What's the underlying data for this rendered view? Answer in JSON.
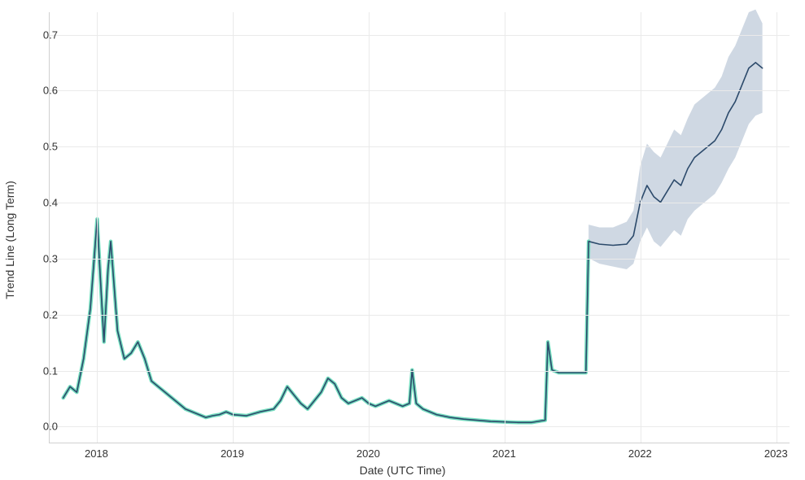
{
  "chart": {
    "type": "line",
    "xlabel": "Date (UTC Time)",
    "ylabel": "Trend Line (Long Term)",
    "background_color": "#ffffff",
    "grid_color": "#eaeaea",
    "axis_color": "#d0d0d0",
    "text_color": "#333333",
    "label_fontsize": 14,
    "tick_fontsize": 13,
    "ylim": [
      -0.03,
      0.74
    ],
    "xlim": [
      2017.65,
      2023.1
    ],
    "yticks": [
      0.0,
      0.1,
      0.2,
      0.3,
      0.4,
      0.5,
      0.6,
      0.7
    ],
    "xticks": [
      2018,
      2019,
      2020,
      2021,
      2022,
      2023
    ],
    "xtick_labels": [
      "2018",
      "2019",
      "2020",
      "2021",
      "2022",
      "2023"
    ],
    "ytick_labels": [
      "0.0",
      "0.1",
      "0.2",
      "0.3",
      "0.4",
      "0.5",
      "0.6",
      "0.7"
    ],
    "series": {
      "historical_band": {
        "color": "#66d9b8",
        "opacity": 0.9,
        "width": 4.5
      },
      "forecast_band": {
        "color": "#a7b8cc",
        "opacity": 0.55
      },
      "line": {
        "color": "#2c4a6b",
        "width": 1.6
      }
    },
    "data": {
      "x": [
        2017.75,
        2017.8,
        2017.85,
        2017.9,
        2017.95,
        2018.0,
        2018.02,
        2018.05,
        2018.08,
        2018.1,
        2018.15,
        2018.2,
        2018.25,
        2018.3,
        2018.35,
        2018.4,
        2018.45,
        2018.5,
        2018.55,
        2018.6,
        2018.65,
        2018.7,
        2018.75,
        2018.8,
        2018.85,
        2018.9,
        2018.95,
        2019.0,
        2019.1,
        2019.2,
        2019.3,
        2019.35,
        2019.4,
        2019.45,
        2019.5,
        2019.55,
        2019.6,
        2019.65,
        2019.7,
        2019.75,
        2019.8,
        2019.85,
        2019.9,
        2019.95,
        2020.0,
        2020.05,
        2020.1,
        2020.15,
        2020.2,
        2020.25,
        2020.3,
        2020.32,
        2020.35,
        2020.4,
        2020.5,
        2020.6,
        2020.7,
        2020.8,
        2020.9,
        2021.0,
        2021.1,
        2021.2,
        2021.3,
        2021.32,
        2021.35,
        2021.4,
        2021.5,
        2021.6,
        2021.62,
        2021.7,
        2021.8,
        2021.9,
        2021.95,
        2022.0,
        2022.05,
        2022.1,
        2022.15,
        2022.2,
        2022.25,
        2022.3,
        2022.35,
        2022.4,
        2022.45,
        2022.5,
        2022.55,
        2022.6,
        2022.65,
        2022.7,
        2022.75,
        2022.8,
        2022.85,
        2022.9
      ],
      "y": [
        0.05,
        0.07,
        0.06,
        0.12,
        0.21,
        0.37,
        0.28,
        0.15,
        0.28,
        0.33,
        0.17,
        0.12,
        0.13,
        0.15,
        0.12,
        0.08,
        0.07,
        0.06,
        0.05,
        0.04,
        0.03,
        0.025,
        0.02,
        0.015,
        0.018,
        0.02,
        0.025,
        0.02,
        0.018,
        0.025,
        0.03,
        0.045,
        0.07,
        0.055,
        0.04,
        0.03,
        0.045,
        0.06,
        0.085,
        0.075,
        0.05,
        0.04,
        0.045,
        0.05,
        0.04,
        0.035,
        0.04,
        0.045,
        0.04,
        0.035,
        0.04,
        0.1,
        0.04,
        0.03,
        0.02,
        0.015,
        0.012,
        0.01,
        0.008,
        0.007,
        0.006,
        0.006,
        0.01,
        0.15,
        0.1,
        0.095,
        0.095,
        0.095,
        0.33,
        0.325,
        0.323,
        0.325,
        0.34,
        0.4,
        0.43,
        0.41,
        0.4,
        0.42,
        0.44,
        0.43,
        0.46,
        0.48,
        0.49,
        0.5,
        0.51,
        0.53,
        0.56,
        0.58,
        0.61,
        0.64,
        0.65,
        0.64
      ],
      "historical_end_index": 68,
      "band_lower": [
        0.3,
        0.29,
        0.285,
        0.28,
        0.29,
        0.33,
        0.355,
        0.33,
        0.32,
        0.335,
        0.35,
        0.34,
        0.37,
        0.385,
        0.395,
        0.405,
        0.415,
        0.435,
        0.46,
        0.48,
        0.51,
        0.54,
        0.555,
        0.56
      ],
      "band_upper": [
        0.36,
        0.355,
        0.355,
        0.365,
        0.385,
        0.465,
        0.505,
        0.49,
        0.48,
        0.505,
        0.53,
        0.52,
        0.55,
        0.575,
        0.585,
        0.595,
        0.605,
        0.625,
        0.66,
        0.68,
        0.71,
        0.74,
        0.745,
        0.72
      ]
    }
  }
}
